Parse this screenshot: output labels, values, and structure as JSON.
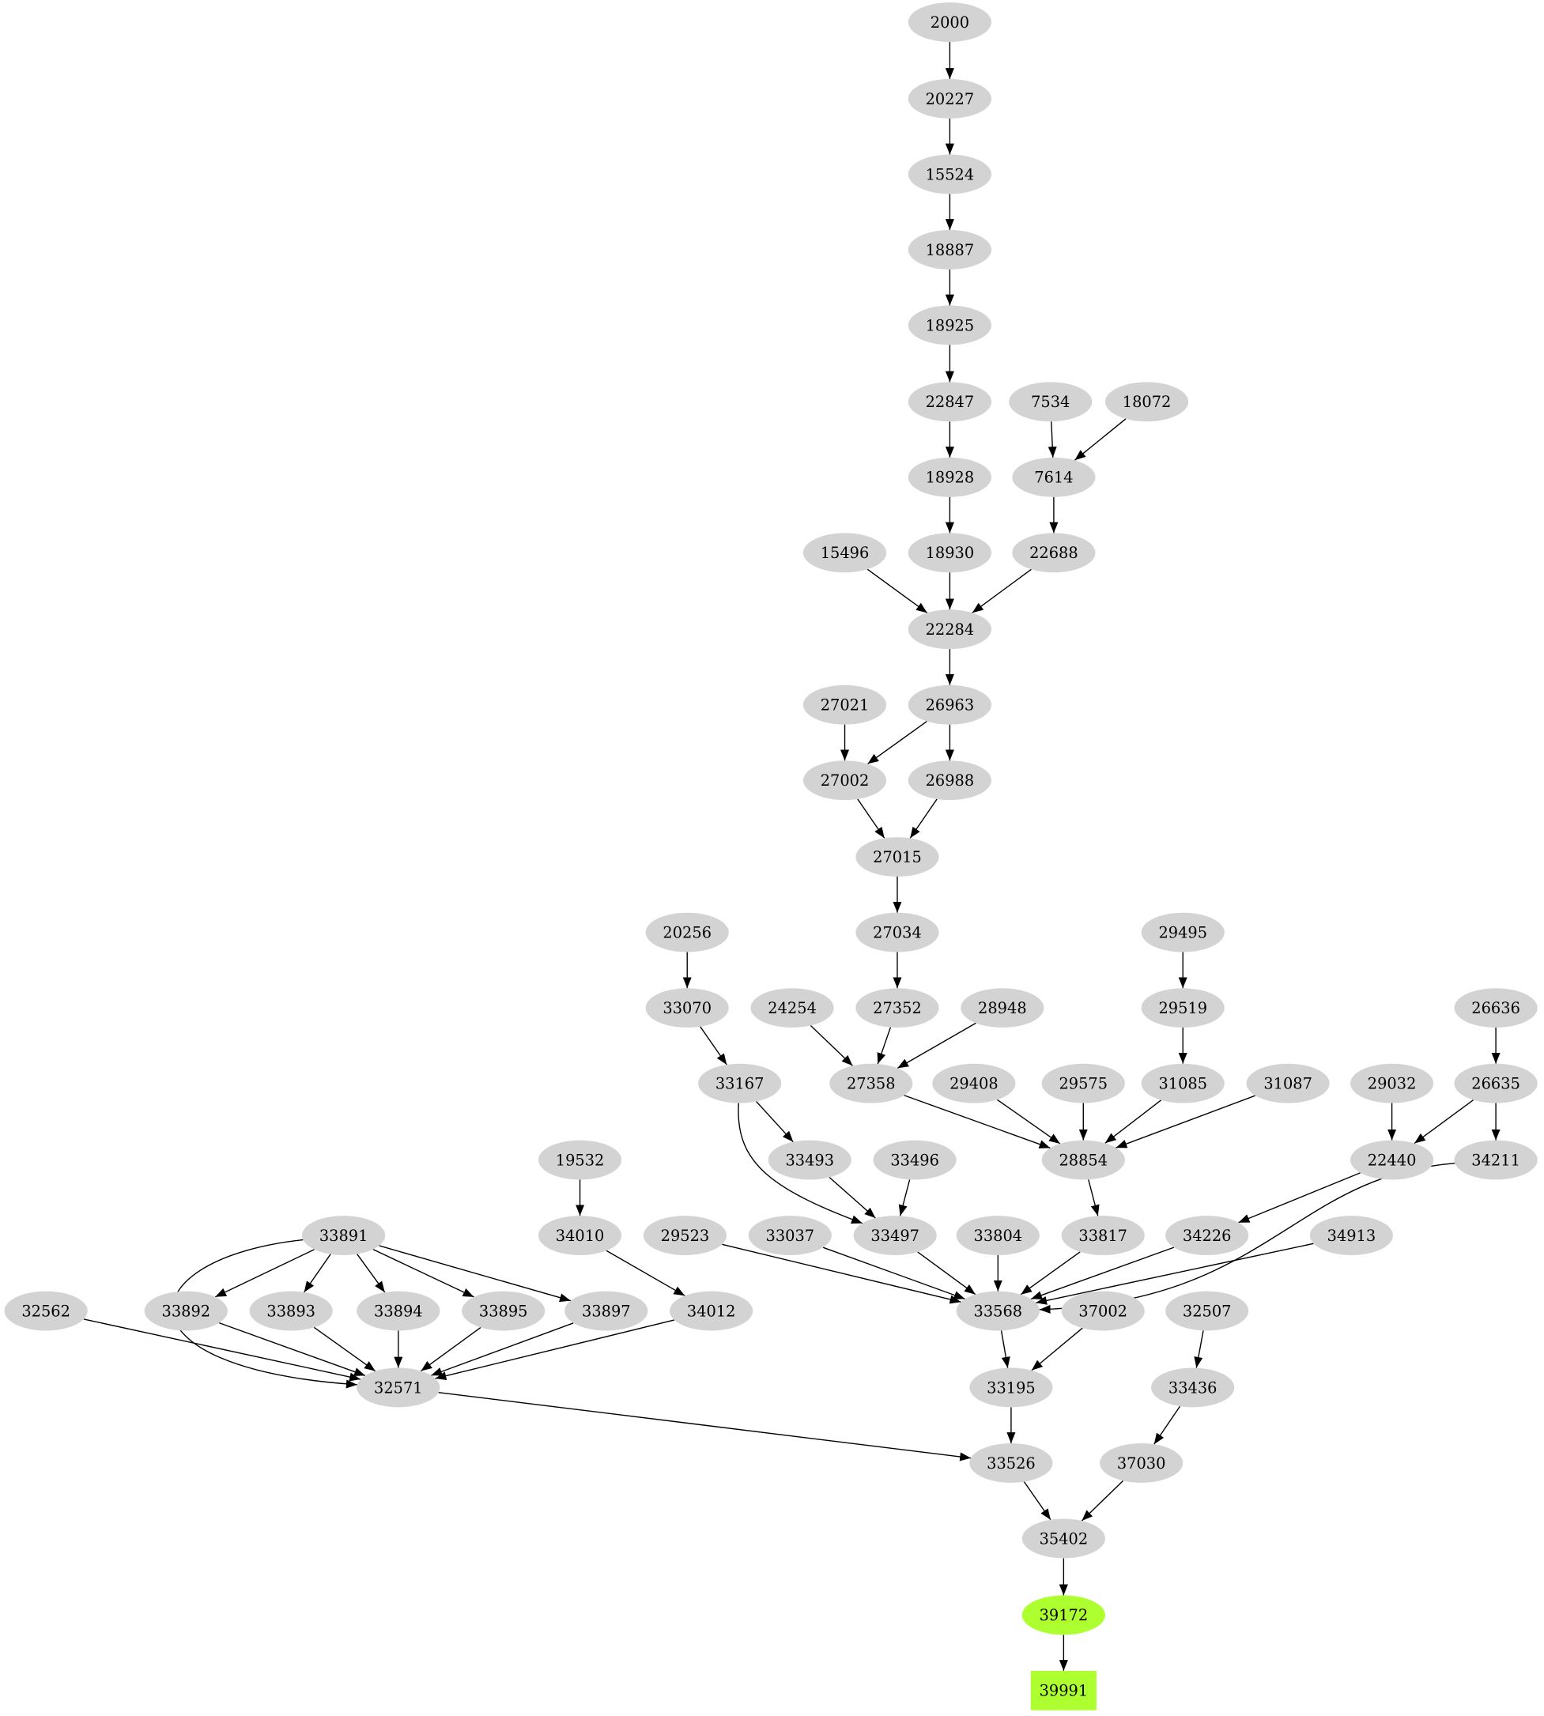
{
  "graph": {
    "node_fill": "#d3d3d3",
    "highlight_fill": "#adff2f",
    "edge_color": "#000000",
    "nodes": [
      {
        "id": "2000"
      },
      {
        "id": "20227"
      },
      {
        "id": "15524"
      },
      {
        "id": "18887"
      },
      {
        "id": "18925"
      },
      {
        "id": "22847"
      },
      {
        "id": "7534"
      },
      {
        "id": "18072"
      },
      {
        "id": "18928"
      },
      {
        "id": "7614"
      },
      {
        "id": "15496"
      },
      {
        "id": "18930"
      },
      {
        "id": "22688"
      },
      {
        "id": "22284"
      },
      {
        "id": "27021"
      },
      {
        "id": "26963"
      },
      {
        "id": "27002"
      },
      {
        "id": "26988"
      },
      {
        "id": "27015"
      },
      {
        "id": "20256"
      },
      {
        "id": "27034"
      },
      {
        "id": "29495"
      },
      {
        "id": "33070"
      },
      {
        "id": "24254"
      },
      {
        "id": "27352"
      },
      {
        "id": "28948"
      },
      {
        "id": "29519"
      },
      {
        "id": "26636"
      },
      {
        "id": "33167"
      },
      {
        "id": "27358"
      },
      {
        "id": "29408"
      },
      {
        "id": "29575"
      },
      {
        "id": "31085"
      },
      {
        "id": "31087"
      },
      {
        "id": "29032"
      },
      {
        "id": "26635"
      },
      {
        "id": "19532"
      },
      {
        "id": "33493"
      },
      {
        "id": "33496"
      },
      {
        "id": "28854"
      },
      {
        "id": "22440"
      },
      {
        "id": "34211"
      },
      {
        "id": "33891"
      },
      {
        "id": "34010"
      },
      {
        "id": "29523"
      },
      {
        "id": "33037"
      },
      {
        "id": "33497"
      },
      {
        "id": "33804"
      },
      {
        "id": "33817"
      },
      {
        "id": "34226"
      },
      {
        "id": "34913"
      },
      {
        "id": "32562"
      },
      {
        "id": "33892"
      },
      {
        "id": "33893"
      },
      {
        "id": "33894"
      },
      {
        "id": "33895"
      },
      {
        "id": "33897"
      },
      {
        "id": "34012"
      },
      {
        "id": "33568"
      },
      {
        "id": "37002"
      },
      {
        "id": "32507"
      },
      {
        "id": "32571"
      },
      {
        "id": "33195"
      },
      {
        "id": "33436"
      },
      {
        "id": "33526"
      },
      {
        "id": "37030"
      },
      {
        "id": "35402"
      },
      {
        "id": "39172",
        "highlight": true
      },
      {
        "id": "39991",
        "highlight": true,
        "shape": "box"
      }
    ],
    "edges": [
      [
        "2000",
        "20227"
      ],
      [
        "20227",
        "15524"
      ],
      [
        "15524",
        "18887"
      ],
      [
        "18887",
        "18925"
      ],
      [
        "18925",
        "22847"
      ],
      [
        "22847",
        "18928"
      ],
      [
        "18928",
        "18930"
      ],
      [
        "7534",
        "7614"
      ],
      [
        "18072",
        "7614"
      ],
      [
        "7614",
        "22688"
      ],
      [
        "15496",
        "22284"
      ],
      [
        "18930",
        "22284"
      ],
      [
        "22688",
        "22284"
      ],
      [
        "22284",
        "26963"
      ],
      [
        "27021",
        "27002"
      ],
      [
        "26963",
        "27002"
      ],
      [
        "26963",
        "26988"
      ],
      [
        "27002",
        "27015"
      ],
      [
        "26988",
        "27015"
      ],
      [
        "27015",
        "27034"
      ],
      [
        "27034",
        "27352"
      ],
      [
        "20256",
        "33070"
      ],
      [
        "33070",
        "33167"
      ],
      [
        "24254",
        "27358"
      ],
      [
        "27352",
        "27358"
      ],
      [
        "28948",
        "27358"
      ],
      [
        "29495",
        "29519"
      ],
      [
        "29519",
        "31085"
      ],
      [
        "26636",
        "26635"
      ],
      [
        "33167",
        "33493"
      ],
      [
        "33167",
        "33497"
      ],
      [
        "27358",
        "28854"
      ],
      [
        "29408",
        "28854"
      ],
      [
        "29575",
        "28854"
      ],
      [
        "31085",
        "28854"
      ],
      [
        "31087",
        "28854"
      ],
      [
        "29032",
        "22440"
      ],
      [
        "26635",
        "22440"
      ],
      [
        "26635",
        "34211"
      ],
      [
        "19532",
        "34010"
      ],
      [
        "33493",
        "33497"
      ],
      [
        "33496",
        "33497"
      ],
      [
        "28854",
        "33817"
      ],
      [
        "22440",
        "34226"
      ],
      [
        "34211",
        "33568"
      ],
      [
        "33891",
        "33892"
      ],
      [
        "33891",
        "33893"
      ],
      [
        "33891",
        "33894"
      ],
      [
        "33891",
        "33895"
      ],
      [
        "33891",
        "33897"
      ],
      [
        "33891",
        "32571"
      ],
      [
        "34010",
        "34012"
      ],
      [
        "29523",
        "33568"
      ],
      [
        "33037",
        "33568"
      ],
      [
        "33497",
        "33568"
      ],
      [
        "33804",
        "33568"
      ],
      [
        "33817",
        "33568"
      ],
      [
        "34226",
        "33568"
      ],
      [
        "34913",
        "33568"
      ],
      [
        "32562",
        "32571"
      ],
      [
        "33892",
        "32571"
      ],
      [
        "33893",
        "32571"
      ],
      [
        "33894",
        "32571"
      ],
      [
        "33895",
        "32571"
      ],
      [
        "33897",
        "32571"
      ],
      [
        "34012",
        "32571"
      ],
      [
        "33568",
        "33195"
      ],
      [
        "37002",
        "33195"
      ],
      [
        "32507",
        "33436"
      ],
      [
        "32571",
        "33526"
      ],
      [
        "33195",
        "33526"
      ],
      [
        "33436",
        "37030"
      ],
      [
        "33526",
        "35402"
      ],
      [
        "37030",
        "35402"
      ],
      [
        "35402",
        "39172"
      ],
      [
        "39172",
        "39991"
      ]
    ]
  }
}
